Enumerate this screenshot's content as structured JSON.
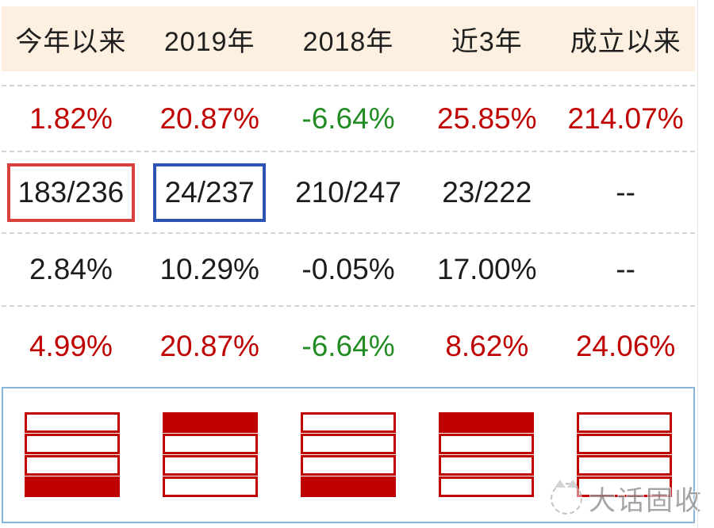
{
  "palette": {
    "red": "#c00000",
    "green": "#228b22",
    "black": "#1c1c1c",
    "header_bg": "#fdf0e1",
    "red_box_border": "#d9403e",
    "blue_box_border": "#2f54b4",
    "panel_border": "#8ab4d8",
    "dash": "#d4d4d4",
    "icon_red": "#c00000",
    "watermark_gray": "#8f8f8f"
  },
  "header": {
    "cells": [
      "今年以来",
      "2019年",
      "2018年",
      "近3年",
      "成立以来"
    ]
  },
  "rows": {
    "returns": {
      "values": [
        "1.82%",
        "20.87%",
        "-6.64%",
        "25.85%",
        "214.07%"
      ],
      "classes": [
        "cell red",
        "cell red",
        "cell green",
        "cell red",
        "cell red"
      ]
    },
    "rank": {
      "values": [
        "183/236",
        "24/237",
        "210/247",
        "23/222",
        "--"
      ],
      "highlight": [
        "red-box",
        "blue-box",
        "none",
        "none",
        "none"
      ]
    },
    "average": {
      "values": [
        "2.84%",
        "10.29%",
        "-0.05%",
        "17.00%",
        "--"
      ],
      "classes": [
        "cell black",
        "cell black",
        "cell black",
        "cell black",
        "cell black"
      ]
    },
    "benchmark": {
      "values": [
        "4.99%",
        "20.87%",
        "-6.64%",
        "8.62%",
        "24.06%"
      ],
      "classes": [
        "cell red",
        "cell red",
        "cell green",
        "cell red",
        "cell red"
      ]
    }
  },
  "quartile_chart": {
    "type": "quartile-bands",
    "columns": [
      "今年以来",
      "2019年",
      "2018年",
      "近3年",
      "成立以来"
    ],
    "bands_per_icon": 4,
    "filled_band": [
      4,
      1,
      4,
      1,
      0
    ]
  },
  "watermark": {
    "text": "大话固收"
  }
}
